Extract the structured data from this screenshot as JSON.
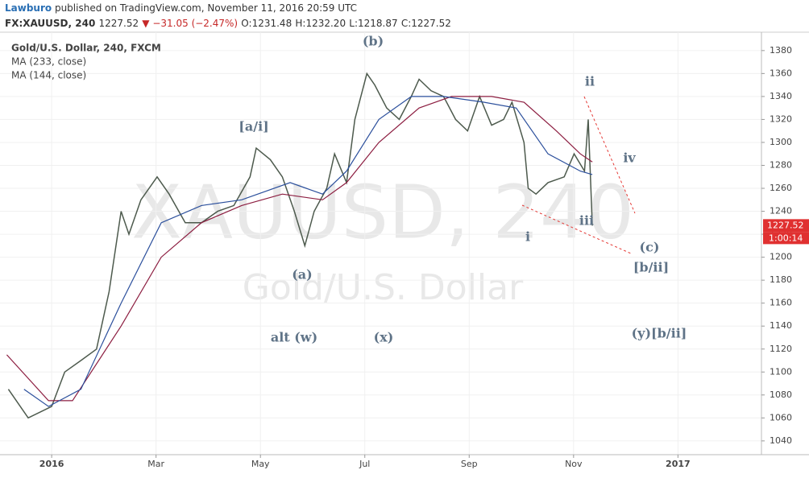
{
  "header": {
    "author": "Lawburo",
    "published": "published on TradingView.com, November 11, 2016 20:59 UTC",
    "symbol": "FX:XAUUSD, 240",
    "last": "1227.52",
    "change": "▼ −31.05 (−2.47%)",
    "open": "O:1231.48",
    "high": "H:1232.20",
    "low": "L:1218.87",
    "close": "C:1227.52"
  },
  "chart_data": {
    "type": "line",
    "watermark": "XAUUSD, 240",
    "watermark_subtitle": "Gold/U.S. Dollar",
    "series": [
      {
        "name": "Gold/U.S. Dollar, 240, FXCM",
        "color": "#4d5a4d",
        "x": [
          -0.83,
          -0.45,
          0,
          0.25,
          0.56,
          0.86,
          1.1,
          1.33,
          1.48,
          1.71,
          2.02,
          2.25,
          2.56,
          2.87,
          3.18,
          3.49,
          3.8,
          3.92,
          4.19,
          4.42,
          4.65,
          4.85,
          5.03,
          5.27,
          5.42,
          5.65,
          5.81,
          6.04,
          6.19,
          6.42,
          6.66,
          6.89,
          7.04,
          7.27,
          7.51,
          7.74,
          7.97,
          8.2,
          8.43,
          8.66,
          8.82,
          9.05,
          9.13,
          9.28,
          9.51,
          9.82,
          10.01,
          10.21,
          10.28,
          10.36
        ],
        "values": [
          1085,
          1060,
          1070,
          1100,
          1110,
          1120,
          1170,
          1240,
          1220,
          1250,
          1270,
          1255,
          1230,
          1230,
          1240,
          1245,
          1270,
          1295,
          1285,
          1270,
          1240,
          1210,
          1240,
          1260,
          1290,
          1265,
          1320,
          1360,
          1350,
          1330,
          1320,
          1340,
          1355,
          1345,
          1340,
          1320,
          1310,
          1340,
          1315,
          1320,
          1335,
          1300,
          1260,
          1255,
          1265,
          1270,
          1290,
          1275,
          1320,
          1227.52
        ]
      },
      {
        "name": "MA (233, close)",
        "color": "#8c1d40",
        "x": [
          -0.86,
          -0.06,
          0.4,
          1.33,
          2.1,
          2.87,
          3.64,
          4.42,
          5.19,
          5.65,
          6.27,
          7.04,
          7.66,
          8.43,
          9.05,
          9.67,
          10.13,
          10.36
        ],
        "values": [
          1115,
          1075,
          1075,
          1140,
          1200,
          1230,
          1245,
          1255,
          1250,
          1265,
          1300,
          1330,
          1340,
          1340,
          1335,
          1310,
          1290,
          1283
        ]
      },
      {
        "name": "MA (144, close)",
        "color": "#2b4f9c",
        "x": [
          -0.53,
          -0.06,
          0.56,
          1.33,
          2.1,
          2.87,
          3.64,
          4.57,
          5.19,
          5.65,
          6.27,
          6.89,
          7.51,
          8.28,
          8.9,
          9.51,
          10.13,
          10.36
        ],
        "values": [
          1085,
          1070,
          1085,
          1160,
          1230,
          1245,
          1250,
          1265,
          1255,
          1275,
          1320,
          1340,
          1340,
          1335,
          1330,
          1290,
          1275,
          1272
        ]
      }
    ],
    "xlim": [
      -0.99,
      13.6
    ],
    "xticks": [
      {
        "value": 0,
        "label": "2016"
      },
      {
        "value": 2,
        "label": "Mar"
      },
      {
        "value": 4,
        "label": "May"
      },
      {
        "value": 6,
        "label": "Jul"
      },
      {
        "value": 8,
        "label": "Sep"
      },
      {
        "value": 10,
        "label": "Nov"
      },
      {
        "value": 12,
        "label": "2017"
      }
    ],
    "ylim": [
      1028,
      1396
    ],
    "yticks": [
      1040,
      1060,
      1080,
      1100,
      1120,
      1140,
      1160,
      1180,
      1200,
      1220,
      1240,
      1260,
      1280,
      1300,
      1320,
      1340,
      1360,
      1380
    ],
    "grid": true,
    "price_tag": 1227.52,
    "timer": "1:00:14",
    "annotations": [
      "(b)",
      "[a/i]",
      "(a)",
      "alt (w)",
      "(x)",
      "ii",
      "iv",
      "i",
      "iii",
      "(c)",
      "[b/ii]",
      "(y)[b/ii]"
    ]
  }
}
